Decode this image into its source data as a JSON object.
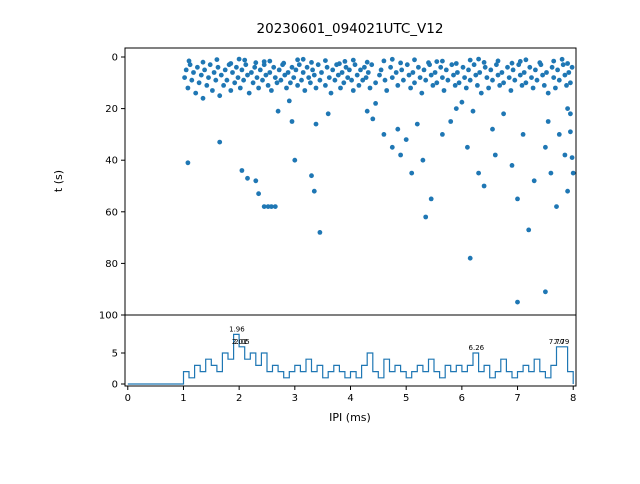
{
  "figure": {
    "title": "20230601_094021UTC_V12",
    "xlabel": "IPI (ms)",
    "ylabel": "t (s)"
  },
  "chart_data": [
    {
      "type": "scatter",
      "title": "20230601_094021UTC_V12",
      "ylabel": "t (s)",
      "xlim": [
        0,
        8
      ],
      "ylim": [
        0,
        100
      ],
      "y_inverted": true,
      "yticks": [
        0,
        20,
        40,
        60,
        80,
        100
      ],
      "marker_color": "#1f77b4",
      "points": [
        [
          1.02,
          8
        ],
        [
          1.05,
          5
        ],
        [
          1.08,
          12
        ],
        [
          1.12,
          3
        ],
        [
          1.15,
          9
        ],
        [
          1.18,
          6
        ],
        [
          1.22,
          14
        ],
        [
          1.25,
          4
        ],
        [
          1.28,
          10
        ],
        [
          1.32,
          7
        ],
        [
          1.35,
          16
        ],
        [
          1.38,
          5
        ],
        [
          1.42,
          11
        ],
        [
          1.45,
          8
        ],
        [
          1.48,
          3
        ],
        [
          1.52,
          13
        ],
        [
          1.55,
          6
        ],
        [
          1.58,
          9
        ],
        [
          1.62,
          4
        ],
        [
          1.65,
          15
        ],
        [
          1.68,
          7
        ],
        [
          1.72,
          11
        ],
        [
          1.75,
          5
        ],
        [
          1.78,
          9
        ],
        [
          1.82,
          3
        ],
        [
          1.85,
          13
        ],
        [
          1.88,
          6
        ],
        [
          1.92,
          10
        ],
        [
          1.95,
          4
        ],
        [
          1.98,
          8
        ],
        [
          2.02,
          12
        ],
        [
          2.05,
          5
        ],
        [
          2.08,
          9
        ],
        [
          2.12,
          3
        ],
        [
          2.15,
          7
        ],
        [
          2.18,
          14
        ],
        [
          2.22,
          6
        ],
        [
          2.25,
          10
        ],
        [
          2.28,
          4
        ],
        [
          2.32,
          8
        ],
        [
          2.35,
          12
        ],
        [
          2.38,
          5
        ],
        [
          2.42,
          9
        ],
        [
          2.45,
          3
        ],
        [
          2.48,
          7
        ],
        [
          2.52,
          11
        ],
        [
          2.55,
          6
        ],
        [
          2.58,
          13
        ],
        [
          2.62,
          4
        ],
        [
          2.65,
          8
        ],
        [
          2.68,
          10
        ],
        [
          2.72,
          5
        ],
        [
          2.75,
          9
        ],
        [
          2.78,
          3
        ],
        [
          2.82,
          7
        ],
        [
          2.85,
          12
        ],
        [
          2.88,
          6
        ],
        [
          2.92,
          10
        ],
        [
          2.95,
          4
        ],
        [
          2.98,
          8
        ],
        [
          3.02,
          5
        ],
        [
          3.05,
          11
        ],
        [
          3.08,
          3
        ],
        [
          3.12,
          9
        ],
        [
          3.15,
          6
        ],
        [
          3.18,
          13
        ],
        [
          3.22,
          4
        ],
        [
          3.25,
          8
        ],
        [
          3.28,
          10
        ],
        [
          3.32,
          5
        ],
        [
          3.35,
          7
        ],
        [
          3.38,
          12
        ],
        [
          3.42,
          3
        ],
        [
          3.45,
          9
        ],
        [
          3.48,
          6
        ],
        [
          3.55,
          11
        ],
        [
          3.58,
          4
        ],
        [
          3.62,
          8
        ],
        [
          3.65,
          14
        ],
        [
          3.68,
          5
        ],
        [
          3.72,
          9
        ],
        [
          3.75,
          3
        ],
        [
          3.78,
          7
        ],
        [
          3.82,
          12
        ],
        [
          3.85,
          6
        ],
        [
          3.88,
          10
        ],
        [
          3.92,
          4
        ],
        [
          3.95,
          8
        ],
        [
          3.98,
          5
        ],
        [
          4.02,
          9
        ],
        [
          4.05,
          13
        ],
        [
          4.08,
          3
        ],
        [
          4.12,
          7
        ],
        [
          4.15,
          11
        ],
        [
          4.18,
          5
        ],
        [
          4.22,
          9
        ],
        [
          4.25,
          4
        ],
        [
          4.28,
          8
        ],
        [
          4.32,
          6
        ],
        [
          4.35,
          12
        ],
        [
          4.38,
          3
        ],
        [
          4.45,
          10
        ],
        [
          4.52,
          7
        ],
        [
          4.55,
          5
        ],
        [
          4.62,
          9
        ],
        [
          4.65,
          13
        ],
        [
          4.72,
          4
        ],
        [
          4.75,
          8
        ],
        [
          4.82,
          6
        ],
        [
          4.85,
          11
        ],
        [
          4.92,
          5
        ],
        [
          4.95,
          9
        ],
        [
          5.02,
          3
        ],
        [
          5.05,
          7
        ],
        [
          5.08,
          12
        ],
        [
          5.12,
          6
        ],
        [
          5.15,
          10
        ],
        [
          5.22,
          4
        ],
        [
          5.25,
          8
        ],
        [
          5.28,
          14
        ],
        [
          5.32,
          5
        ],
        [
          5.35,
          9
        ],
        [
          5.42,
          3
        ],
        [
          5.45,
          7
        ],
        [
          5.48,
          11
        ],
        [
          5.52,
          6
        ],
        [
          5.55,
          10
        ],
        [
          5.62,
          4
        ],
        [
          5.65,
          8
        ],
        [
          5.68,
          13
        ],
        [
          5.72,
          5
        ],
        [
          5.75,
          9
        ],
        [
          5.82,
          3
        ],
        [
          5.85,
          7
        ],
        [
          5.88,
          11
        ],
        [
          5.92,
          6
        ],
        [
          5.95,
          10
        ],
        [
          6.02,
          4
        ],
        [
          6.05,
          8
        ],
        [
          6.08,
          12
        ],
        [
          6.12,
          5
        ],
        [
          6.15,
          9
        ],
        [
          6.22,
          3
        ],
        [
          6.25,
          7
        ],
        [
          6.28,
          11
        ],
        [
          6.32,
          6
        ],
        [
          6.35,
          14
        ],
        [
          6.42,
          4
        ],
        [
          6.45,
          8
        ],
        [
          6.48,
          12
        ],
        [
          6.52,
          5
        ],
        [
          6.55,
          9
        ],
        [
          6.62,
          3
        ],
        [
          6.65,
          7
        ],
        [
          6.68,
          11
        ],
        [
          6.72,
          6
        ],
        [
          6.75,
          10
        ],
        [
          6.82,
          4
        ],
        [
          6.85,
          8
        ],
        [
          6.88,
          13
        ],
        [
          6.92,
          5
        ],
        [
          6.95,
          9
        ],
        [
          7.02,
          3
        ],
        [
          7.05,
          7
        ],
        [
          7.08,
          11
        ],
        [
          7.12,
          6
        ],
        [
          7.15,
          10
        ],
        [
          7.22,
          4
        ],
        [
          7.25,
          8
        ],
        [
          7.28,
          12
        ],
        [
          7.32,
          5
        ],
        [
          7.35,
          9
        ],
        [
          7.42,
          3
        ],
        [
          7.45,
          7
        ],
        [
          7.48,
          11
        ],
        [
          7.52,
          6
        ],
        [
          7.55,
          14
        ],
        [
          7.62,
          4
        ],
        [
          7.65,
          8
        ],
        [
          7.68,
          12
        ],
        [
          7.72,
          5
        ],
        [
          7.75,
          9
        ],
        [
          7.82,
          3
        ],
        [
          7.85,
          7
        ],
        [
          7.88,
          11
        ],
        [
          7.92,
          6
        ],
        [
          7.95,
          10
        ],
        [
          7.98,
          4
        ],
        [
          1.1,
          1.5
        ],
        [
          1.35,
          2
        ],
        [
          1.6,
          1
        ],
        [
          1.85,
          2.5
        ],
        [
          2.1,
          1.2
        ],
        [
          2.3,
          2.2
        ],
        [
          2.55,
          1.6
        ],
        [
          2.8,
          2.4
        ],
        [
          3.05,
          1.1
        ],
        [
          3.3,
          2.1
        ],
        [
          3.55,
          1.4
        ],
        [
          3.8,
          2.6
        ],
        [
          4.05,
          1.2
        ],
        [
          4.3,
          2
        ],
        [
          4.6,
          1.5
        ],
        [
          4.9,
          2.3
        ],
        [
          5.15,
          1.1
        ],
        [
          5.4,
          2.2
        ],
        [
          5.65,
          1.6
        ],
        [
          5.9,
          2.5
        ],
        [
          6.15,
          1.2
        ],
        [
          6.4,
          2.1
        ],
        [
          6.65,
          1.5
        ],
        [
          6.9,
          2.4
        ],
        [
          7.15,
          1.1
        ],
        [
          7.4,
          2.2
        ],
        [
          7.65,
          1.6
        ],
        [
          7.9,
          2.5
        ],
        [
          2.0,
          0.8
        ],
        [
          2.45,
          1.8
        ],
        [
          3.15,
          0.9
        ],
        [
          3.9,
          1.7
        ],
        [
          4.75,
          0.9
        ],
        [
          5.55,
          1.8
        ],
        [
          6.3,
          0.8
        ],
        [
          7.05,
          1.7
        ],
        [
          7.8,
          0.9
        ],
        [
          4.45,
          18
        ],
        [
          2.9,
          17
        ],
        [
          6.0,
          17.5
        ],
        [
          1.08,
          41
        ],
        [
          1.65,
          33
        ],
        [
          2.05,
          44
        ],
        [
          2.15,
          47
        ],
        [
          2.3,
          48
        ],
        [
          2.35,
          53
        ],
        [
          2.45,
          58
        ],
        [
          2.52,
          58
        ],
        [
          2.58,
          58
        ],
        [
          2.65,
          58
        ],
        [
          2.95,
          25
        ],
        [
          3.0,
          40
        ],
        [
          3.3,
          46
        ],
        [
          3.35,
          52
        ],
        [
          3.38,
          26
        ],
        [
          3.45,
          68
        ],
        [
          4.4,
          24
        ],
        [
          4.6,
          30
        ],
        [
          4.75,
          35
        ],
        [
          4.85,
          28
        ],
        [
          4.9,
          38
        ],
        [
          5.0,
          32
        ],
        [
          5.1,
          45
        ],
        [
          5.2,
          26
        ],
        [
          5.3,
          40
        ],
        [
          5.45,
          55
        ],
        [
          5.35,
          62
        ],
        [
          5.65,
          30
        ],
        [
          5.8,
          25
        ],
        [
          6.1,
          35
        ],
        [
          6.15,
          78
        ],
        [
          6.3,
          45
        ],
        [
          6.4,
          50
        ],
        [
          6.55,
          28
        ],
        [
          6.6,
          38
        ],
        [
          6.9,
          42
        ],
        [
          7.0,
          55
        ],
        [
          7.0,
          95
        ],
        [
          7.1,
          30
        ],
        [
          7.2,
          67
        ],
        [
          7.3,
          48
        ],
        [
          7.5,
          35
        ],
        [
          7.5,
          91
        ],
        [
          7.55,
          25
        ],
        [
          7.6,
          45
        ],
        [
          7.7,
          58
        ],
        [
          7.75,
          30
        ],
        [
          7.85,
          38
        ],
        [
          7.9,
          52
        ],
        [
          7.95,
          29
        ],
        [
          7.98,
          39
        ],
        [
          7.9,
          20
        ],
        [
          7.95,
          22
        ],
        [
          8.0,
          45
        ],
        [
          6.75,
          22
        ],
        [
          6.2,
          21
        ],
        [
          5.9,
          20
        ],
        [
          4.3,
          21
        ],
        [
          3.6,
          22
        ],
        [
          2.7,
          21
        ]
      ]
    },
    {
      "type": "line",
      "subtype": "step-histogram",
      "xlabel": "IPI (ms)",
      "xlim": [
        0,
        8
      ],
      "xticks": [
        0,
        1,
        2,
        3,
        4,
        5,
        6,
        7,
        8
      ],
      "yticks": [
        0,
        5
      ],
      "bin_start": 0,
      "bin_width": 0.1,
      "color": "#1f77b4",
      "values": [
        0,
        0,
        0,
        0,
        0,
        0,
        0,
        0,
        0,
        0,
        2,
        1,
        3,
        2,
        4,
        3,
        2,
        5,
        4,
        8,
        6,
        4,
        5,
        3,
        5,
        2,
        3,
        2,
        1,
        2,
        3,
        2,
        4,
        2,
        3,
        1,
        2,
        3,
        2,
        1,
        2,
        1,
        3,
        5,
        2,
        1,
        4,
        2,
        3,
        2,
        1,
        2,
        3,
        2,
        4,
        2,
        1,
        3,
        2,
        3,
        2,
        3,
        5,
        2,
        3,
        1,
        2,
        4,
        2,
        1,
        2,
        3,
        2,
        4,
        2,
        1,
        3,
        6,
        6,
        2
      ],
      "annotations": [
        {
          "x": 1.96,
          "y": 8,
          "label": "1.96"
        },
        {
          "x": 2.01,
          "y": 6,
          "label": "2.01"
        },
        {
          "x": 2.05,
          "y": 6,
          "label": "2.05"
        },
        {
          "x": 6.26,
          "y": 5,
          "label": "6.26"
        },
        {
          "x": 7.7,
          "y": 6,
          "label": "7.70"
        },
        {
          "x": 7.79,
          "y": 6,
          "label": "7.79"
        }
      ]
    }
  ]
}
